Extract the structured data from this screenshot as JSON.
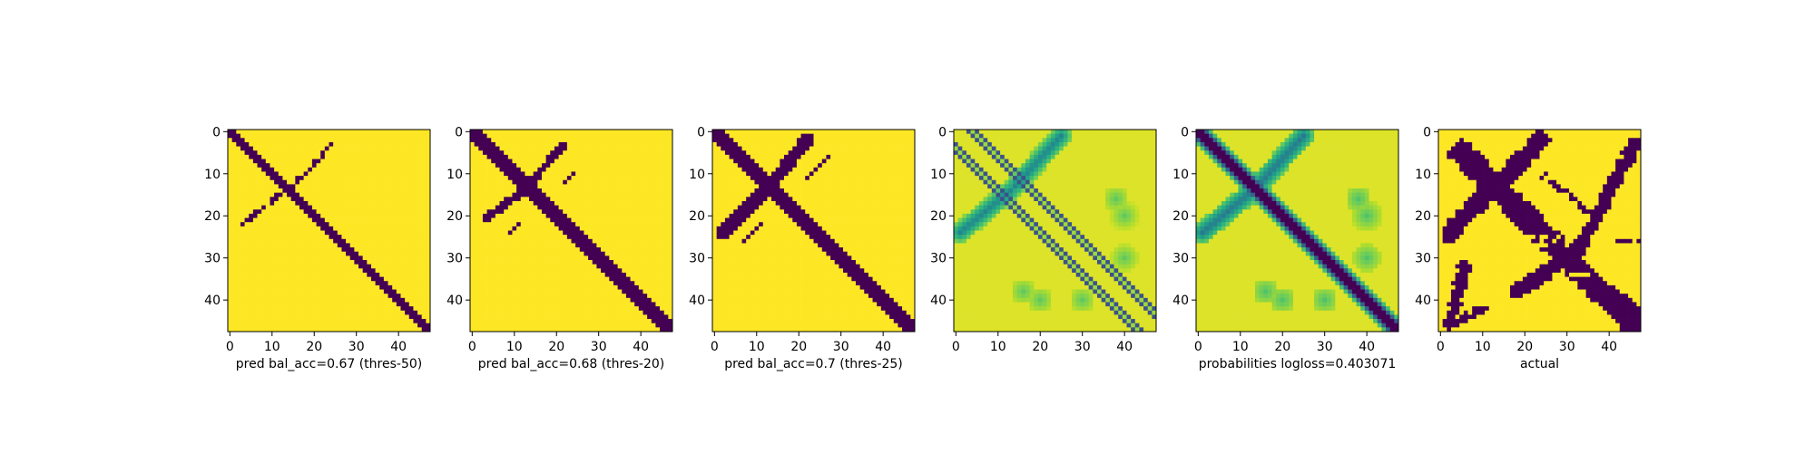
{
  "colors": {
    "low": "#440154",
    "high": "#fde725"
  },
  "chart_data": [
    {
      "type": "heatmap",
      "mode": "binary",
      "variant": "pred50",
      "xlabel": "pred bal_acc=0.67 (thres-50)",
      "xticks": [
        0,
        10,
        20,
        30,
        40
      ],
      "yticks": [
        0,
        10,
        20,
        30,
        40
      ],
      "xlim": [
        0,
        48
      ],
      "ylim": [
        48,
        0
      ],
      "size": 48
    },
    {
      "type": "heatmap",
      "mode": "binary",
      "variant": "pred20",
      "xlabel": "pred bal_acc=0.68 (thres-20)",
      "xticks": [
        0,
        10,
        20,
        30,
        40
      ],
      "yticks": [
        0,
        10,
        20,
        30,
        40
      ],
      "xlim": [
        0,
        48
      ],
      "ylim": [
        48,
        0
      ],
      "size": 48
    },
    {
      "type": "heatmap",
      "mode": "binary",
      "variant": "pred25",
      "xlabel": "pred bal_acc=0.7 (thres-25)",
      "xticks": [
        0,
        10,
        20,
        30,
        40
      ],
      "yticks": [
        0,
        10,
        20,
        30,
        40
      ],
      "xlim": [
        0,
        48
      ],
      "ylim": [
        48,
        0
      ],
      "size": 48
    },
    {
      "type": "heatmap",
      "mode": "continuous",
      "variant": "probA",
      "xlabel": "",
      "xticks": [
        0,
        10,
        20,
        30,
        40
      ],
      "yticks": [
        0,
        10,
        20,
        30,
        40
      ],
      "xlim": [
        0,
        48
      ],
      "ylim": [
        48,
        0
      ],
      "size": 48
    },
    {
      "type": "heatmap",
      "mode": "continuous",
      "variant": "probB",
      "xlabel": "probabilities logloss=0.403071",
      "xticks": [
        0,
        10,
        20,
        30,
        40
      ],
      "yticks": [
        0,
        10,
        20,
        30,
        40
      ],
      "xlim": [
        0,
        48
      ],
      "ylim": [
        48,
        0
      ],
      "size": 48
    },
    {
      "type": "heatmap",
      "mode": "binary",
      "variant": "actual",
      "xlabel": "actual",
      "xticks": [
        0,
        10,
        20,
        30,
        40
      ],
      "yticks": [
        0,
        10,
        20,
        30,
        40
      ],
      "xlim": [
        0,
        48
      ],
      "ylim": [
        48,
        0
      ],
      "size": 48
    }
  ]
}
